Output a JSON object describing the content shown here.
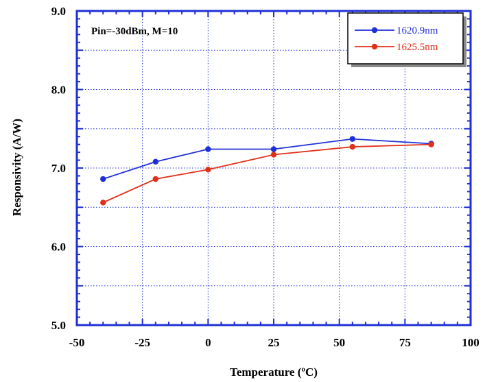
{
  "chart_data": {
    "type": "line",
    "title": "",
    "annotation": "Pin=-30dBm, M=10",
    "xlabel": "Temperature (ºC)",
    "ylabel": "Responsivity (A/W)",
    "xlim": [
      -50,
      100
    ],
    "ylim": [
      5.0,
      9.0
    ],
    "xticks": [
      -50,
      -25,
      0,
      25,
      50,
      75,
      100
    ],
    "xtick_labels": [
      "-50",
      "-25",
      "0",
      "25",
      "50",
      "75",
      "100"
    ],
    "yticks": [
      5.0,
      6.0,
      7.0,
      8.0,
      9.0
    ],
    "ytick_labels": [
      "5.0",
      "6.0",
      "7.0",
      "8.0",
      "9.0"
    ],
    "grid": true,
    "legend_position": "top-right",
    "series": [
      {
        "name": "1620.9nm",
        "color": "#1f2fd6",
        "x": [
          -40,
          -20,
          0,
          25,
          55,
          85
        ],
        "y": [
          6.86,
          7.08,
          7.24,
          7.24,
          7.37,
          7.31
        ]
      },
      {
        "name": "1625.5nm",
        "color": "#e0301a",
        "x": [
          -40,
          -20,
          0,
          25,
          55,
          85
        ],
        "y": [
          6.56,
          6.86,
          6.98,
          7.17,
          7.27,
          7.3
        ]
      }
    ]
  }
}
